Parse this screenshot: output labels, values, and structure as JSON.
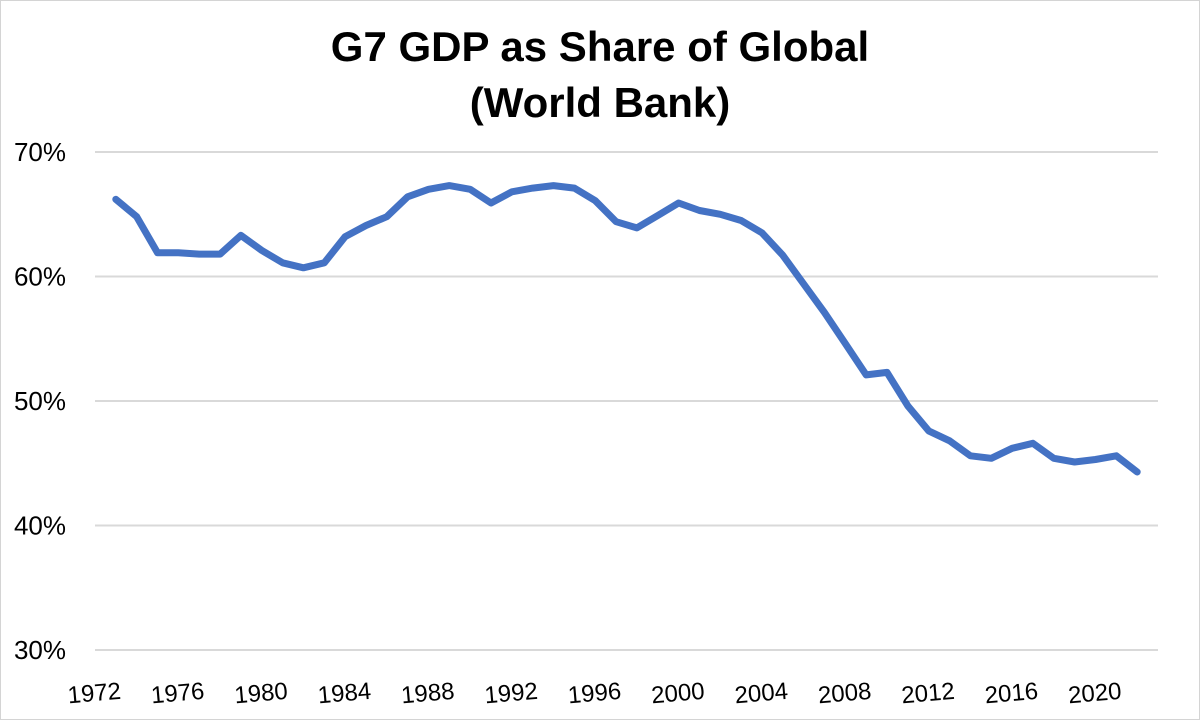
{
  "chart_data": {
    "type": "line",
    "title": "G7 GDP as Share of Global",
    "subtitle": "(World Bank)",
    "xlabel": "",
    "ylabel": "",
    "xlim": [
      1972,
      2023
    ],
    "ylim": [
      30,
      70
    ],
    "yticks": [
      30,
      40,
      50,
      60,
      70
    ],
    "ytick_labels": [
      "30%",
      "40%",
      "50%",
      "60%",
      "70%"
    ],
    "xticks": [
      1972,
      1976,
      1980,
      1984,
      1988,
      1992,
      1996,
      2000,
      2004,
      2008,
      2012,
      2016,
      2020
    ],
    "xtick_labels": [
      "1972",
      "1976",
      "1980",
      "1984",
      "1988",
      "1992",
      "1996",
      "2000",
      "2004",
      "2008",
      "2012",
      "2016",
      "2020"
    ],
    "grid": "horizontal",
    "legend": "none",
    "line_color": "#4472c4",
    "series": [
      {
        "x": [
          1973,
          1974,
          1975,
          1976,
          1977,
          1978,
          1979,
          1980,
          1981,
          1982,
          1983,
          1984,
          1985,
          1986,
          1987,
          1988,
          1989,
          1990,
          1991,
          1992,
          1993,
          1994,
          1995,
          1996,
          1997,
          1998,
          1999,
          2000,
          2001,
          2002,
          2003,
          2004,
          2005,
          2006,
          2007,
          2008,
          2009,
          2010,
          2011,
          2012,
          2013,
          2014,
          2015,
          2016,
          2017,
          2018,
          2019,
          2020,
          2021,
          2022
        ],
        "values": [
          66.2,
          64.8,
          61.9,
          61.9,
          61.8,
          61.8,
          63.3,
          62.1,
          61.1,
          60.7,
          61.1,
          63.2,
          64.1,
          64.8,
          66.4,
          67.0,
          67.3,
          67.0,
          65.9,
          66.8,
          67.1,
          67.3,
          67.1,
          66.1,
          64.4,
          63.9,
          64.9,
          65.9,
          65.3,
          65.0,
          64.5,
          63.5,
          61.7,
          59.4,
          57.1,
          54.6,
          52.1,
          52.3,
          49.6,
          47.6,
          46.8,
          45.6,
          45.4,
          46.2,
          46.6,
          45.4,
          45.1,
          45.3,
          45.6,
          44.3
        ]
      }
    ]
  }
}
